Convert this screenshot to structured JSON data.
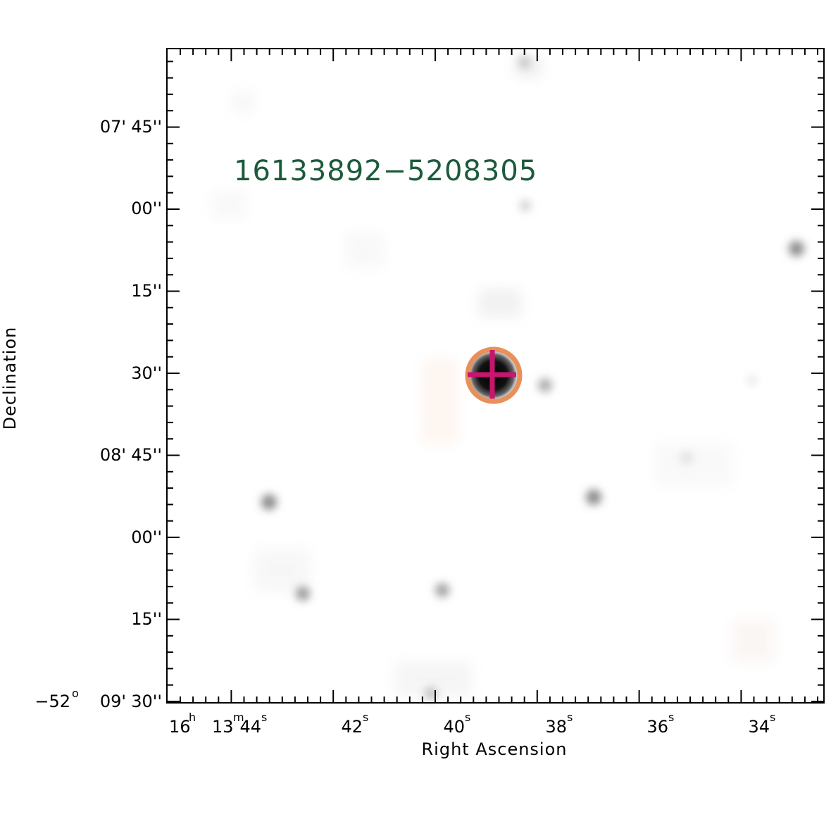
{
  "object_label": "16133892−5208305",
  "colors": {
    "label": "#1c5a3c",
    "circle": "#e8905a",
    "cross": "#c8156e",
    "frame": "#000000"
  },
  "axes": {
    "xlabel": "Right Ascension",
    "ylabel": "Declination",
    "ra_ticks": [
      {
        "h": "16",
        "m": "13",
        "s": "44"
      },
      {
        "s": "42"
      },
      {
        "s": "40"
      },
      {
        "s": "38"
      },
      {
        "s": "36"
      },
      {
        "s": "34"
      }
    ],
    "dec_ticks": [
      {
        "deg": "",
        "min": "07'",
        "sec": "45''"
      },
      {
        "deg": "",
        "min": "",
        "sec": "00''"
      },
      {
        "deg": "",
        "min": "",
        "sec": "15''"
      },
      {
        "deg": "",
        "min": "",
        "sec": "30''"
      },
      {
        "deg": "",
        "min": "08'",
        "sec": "45''"
      },
      {
        "deg": "",
        "min": "",
        "sec": "00''"
      },
      {
        "deg": "",
        "min": "",
        "sec": "15''"
      },
      {
        "deg": "−52",
        "min": "09'",
        "sec": "30''"
      }
    ]
  }
}
